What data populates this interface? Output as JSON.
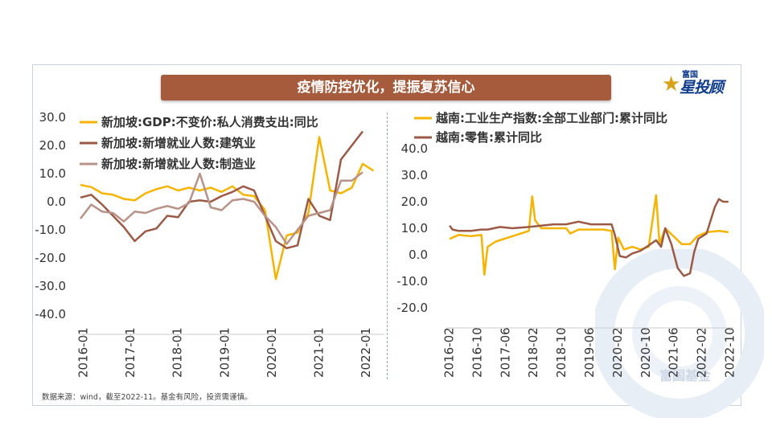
{
  "banner": {
    "title": "疫情防控优化，提振复苏信心"
  },
  "logo": {
    "small": "富国",
    "big": "星投顾"
  },
  "footnote": "数据来源：wind，截至2022-11。基金有风险，投资需谨慎。",
  "watermark_text": "富国基金",
  "colors": {
    "gold": "#f5b400",
    "brown": "#9c5a46",
    "pink": "#b89187"
  },
  "chart_data": [
    {
      "type": "line",
      "ylim": [
        -40,
        30
      ],
      "yticks": [
        "30.0",
        "20.0",
        "10.0",
        "0.0",
        "-10.0",
        "-20.0",
        "-30.0",
        "-40.0"
      ],
      "xticks": [
        "2016-01",
        "2017-01",
        "2018-01",
        "2019-01",
        "2020-01",
        "2021-01",
        "2022-01"
      ],
      "x_start": 2016.0,
      "x_end": 2023.0,
      "series": [
        {
          "name": "新加坡:GDP:不变价:私人消费支出:同比",
          "color": "#f5b400",
          "x": [
            2016.0,
            2016.25,
            2016.5,
            2016.75,
            2017.0,
            2017.25,
            2017.5,
            2017.75,
            2018.0,
            2018.25,
            2018.5,
            2018.75,
            2019.0,
            2019.25,
            2019.5,
            2019.75,
            2020.0,
            2020.25,
            2020.5,
            2020.75,
            2021.0,
            2021.25,
            2021.5,
            2021.75,
            2022.0,
            2022.25,
            2022.5,
            2022.75
          ],
          "values": [
            6.0,
            5.2,
            3.0,
            2.5,
            1.0,
            0.5,
            3.0,
            4.5,
            5.5,
            4.0,
            5.0,
            4.0,
            5.0,
            3.5,
            5.5,
            2.5,
            2.0,
            -3.0,
            -27.5,
            -12.0,
            -11.0,
            -4.0,
            23.0,
            4.0,
            3.0,
            5.0,
            13.5,
            11.0
          ]
        },
        {
          "name": "新加坡:新增就业人数:建筑业",
          "color": "#9c5a46",
          "x": [
            2016.0,
            2016.25,
            2016.5,
            2016.75,
            2017.0,
            2017.25,
            2017.5,
            2017.75,
            2018.0,
            2018.25,
            2018.5,
            2018.75,
            2019.0,
            2019.25,
            2019.5,
            2019.75,
            2020.0,
            2020.25,
            2020.5,
            2020.75,
            2021.0,
            2021.25,
            2021.5,
            2021.75,
            2022.0,
            2022.25,
            2022.5,
            2022.75
          ],
          "values": [
            1.5,
            2.5,
            -1.0,
            -5.0,
            -9.0,
            -14.0,
            -10.5,
            -9.5,
            -5.0,
            -5.5,
            0.0,
            0.5,
            0.0,
            2.0,
            3.5,
            5.5,
            4.0,
            -5.0,
            -14.0,
            -16.5,
            -15.5,
            1.0,
            -5.0,
            -6.5,
            15.0,
            20.0,
            25.0,
            null
          ]
        },
        {
          "name": "新加坡:新增就业人数:制造业",
          "color": "#b89187",
          "x": [
            2016.0,
            2016.25,
            2016.5,
            2016.75,
            2017.0,
            2017.25,
            2017.5,
            2017.75,
            2018.0,
            2018.25,
            2018.5,
            2018.75,
            2019.0,
            2019.25,
            2019.5,
            2019.75,
            2020.0,
            2020.25,
            2020.5,
            2020.75,
            2021.0,
            2021.25,
            2021.5,
            2021.75,
            2022.0,
            2022.25,
            2022.5,
            2022.75
          ],
          "values": [
            -6.0,
            -1.0,
            -3.5,
            -4.0,
            -7.0,
            -3.5,
            -4.0,
            -2.5,
            -1.5,
            -2.5,
            -0.5,
            10.0,
            -2.0,
            -3.0,
            0.5,
            1.0,
            0.0,
            -5.0,
            -9.0,
            -15.0,
            -10.0,
            -5.0,
            -4.0,
            -3.0,
            7.5,
            7.5,
            10.5,
            null
          ]
        }
      ]
    },
    {
      "type": "line",
      "ylim": [
        -20,
        40
      ],
      "yticks": [
        "40.0",
        "30.0",
        "20.0",
        "10.0",
        "0.0",
        "-10.0",
        "-20.0"
      ],
      "xticks": [
        "2016-02",
        "2016-10",
        "2017-06",
        "2018-02",
        "2018-10",
        "2019-06",
        "2020-02",
        "2020-10",
        "2021-06",
        "2022-02",
        "2022-10"
      ],
      "x_start": 2016.0,
      "x_end": 2022.95,
      "series": [
        {
          "name": "越南:工业生产指数:全部工业部门:累计同比",
          "color": "#f5b400",
          "x": [
            2016.08,
            2016.3,
            2016.6,
            2016.85,
            2016.92,
            2017.0,
            2017.2,
            2017.6,
            2018.0,
            2018.08,
            2018.15,
            2018.3,
            2018.6,
            2018.9,
            2019.0,
            2019.2,
            2019.5,
            2019.8,
            2020.0,
            2020.08,
            2020.16,
            2020.3,
            2020.5,
            2020.7,
            2020.9,
            2021.08,
            2021.16,
            2021.3,
            2021.5,
            2021.7,
            2021.9,
            2022.08,
            2022.3,
            2022.6,
            2022.83
          ],
          "values": [
            6.0,
            7.5,
            7.0,
            7.5,
            -7.5,
            3.0,
            5.0,
            7.0,
            9.0,
            22.0,
            13.0,
            10.0,
            10.0,
            10.0,
            8.0,
            9.5,
            9.5,
            9.5,
            9.0,
            -5.5,
            6.5,
            2.0,
            3.0,
            2.0,
            3.0,
            22.5,
            4.0,
            10.0,
            7.0,
            4.0,
            4.0,
            7.0,
            8.5,
            9.0,
            8.5
          ]
        },
        {
          "name": "越南:零售:累计同比",
          "color": "#9c5a46",
          "x": [
            2016.08,
            2016.15,
            2016.3,
            2016.6,
            2016.85,
            2017.0,
            2017.3,
            2017.6,
            2018.0,
            2018.3,
            2018.6,
            2018.9,
            2019.2,
            2019.5,
            2019.8,
            2020.0,
            2020.08,
            2020.2,
            2020.35,
            2020.5,
            2020.7,
            2020.9,
            2021.08,
            2021.2,
            2021.3,
            2021.45,
            2021.6,
            2021.75,
            2021.9,
            2022.0,
            2022.1,
            2022.3,
            2022.5,
            2022.6,
            2022.7,
            2022.83
          ],
          "values": [
            11.0,
            9.5,
            9.0,
            9.0,
            9.5,
            9.5,
            10.5,
            10.0,
            10.5,
            11.0,
            11.5,
            11.5,
            12.5,
            11.5,
            11.5,
            11.5,
            7.5,
            -0.5,
            -1.0,
            0.5,
            1.5,
            3.5,
            5.5,
            3.0,
            10.0,
            4.0,
            -5.0,
            -8.0,
            -7.0,
            1.0,
            6.0,
            8.0,
            18.0,
            21.0,
            20.0,
            20.0
          ]
        }
      ]
    }
  ]
}
